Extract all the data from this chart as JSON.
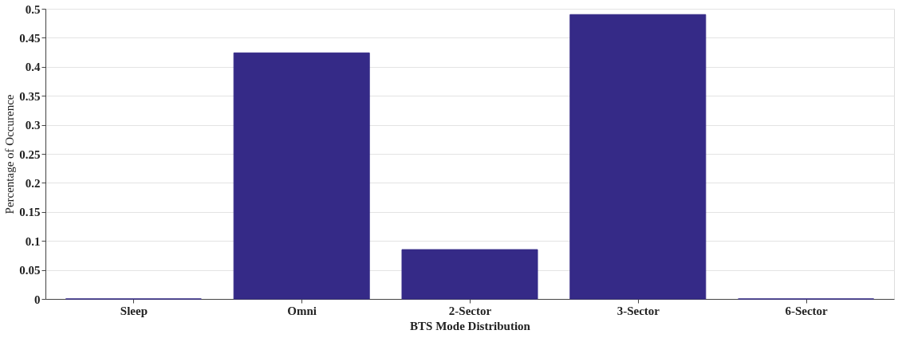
{
  "chart_data": {
    "type": "bar",
    "xlabel": "BTS Mode Distribution",
    "ylabel": "Percentage of Occurence",
    "categories": [
      "Sleep",
      "Omni",
      "2-Sector",
      "3-Sector",
      "6-Sector"
    ],
    "values": [
      0,
      0.424,
      0.085,
      0.49,
      0
    ],
    "color": "#352a87",
    "ylim": [
      0,
      0.5
    ],
    "yticks": [
      0,
      0.05,
      0.1,
      0.15,
      0.2,
      0.25,
      0.3,
      0.35,
      0.4,
      0.45,
      0.5
    ],
    "grid": "y"
  }
}
